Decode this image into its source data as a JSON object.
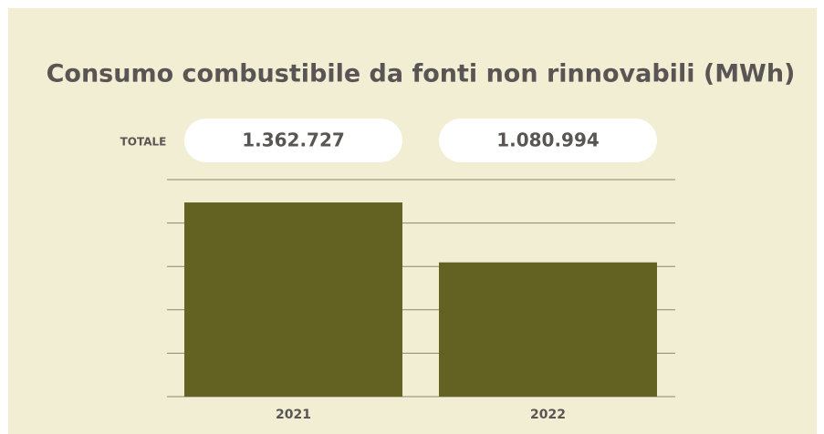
{
  "chart_data": {
    "type": "bar",
    "title": "Consumo combustibile da fonti non rinnovabili (MWh)",
    "total_label": "TOTALE",
    "categories": [
      "2021",
      "2022"
    ],
    "values": [
      1362727,
      1080994
    ],
    "value_labels": [
      "1.362.727",
      "1.080.994"
    ],
    "color": "#636223",
    "ylim": [
      450000,
      1470000
    ],
    "yticks": [
      450000,
      654000,
      858000,
      1062000,
      1266000,
      1470000
    ],
    "grid": true
  }
}
